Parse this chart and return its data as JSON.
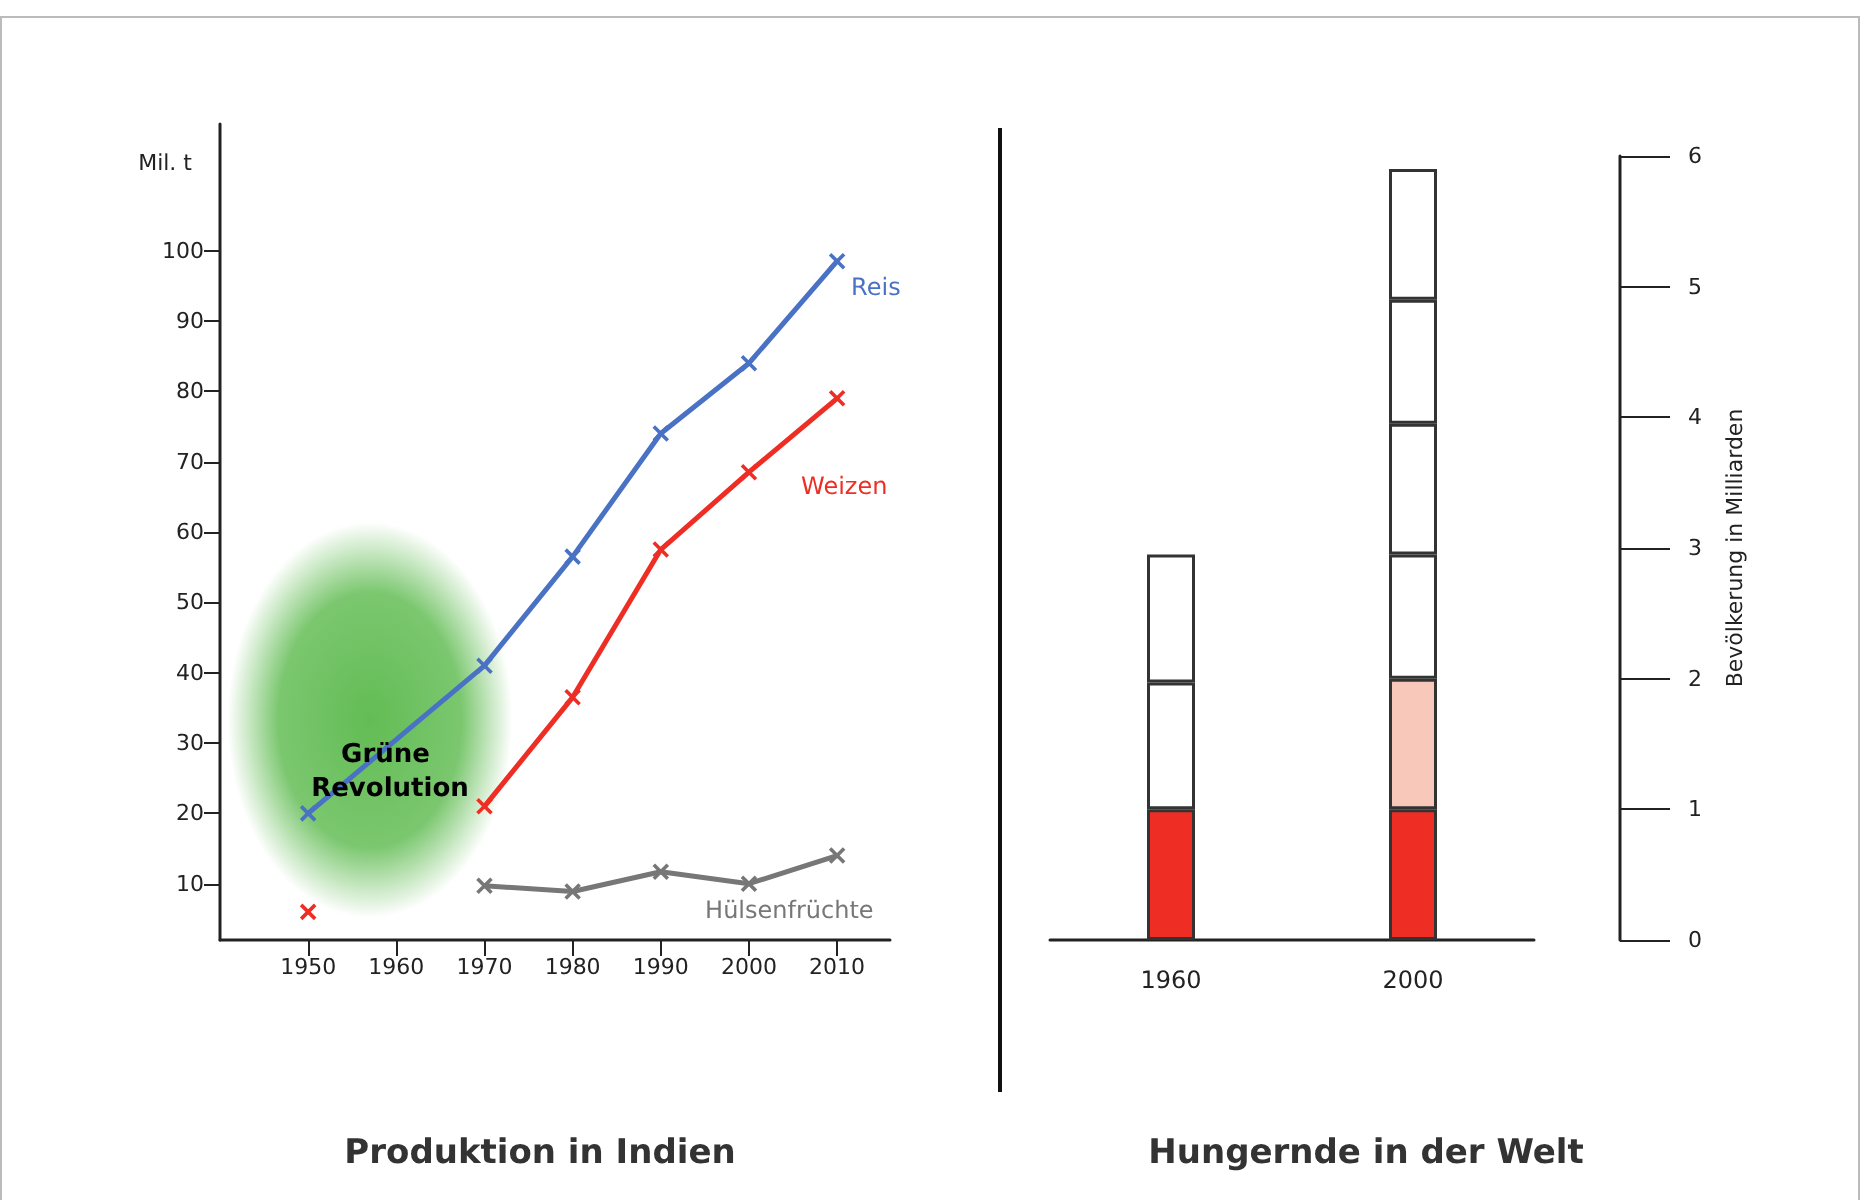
{
  "chart_data": [
    {
      "type": "line",
      "title": "Produktion in Indien",
      "ylabel": "Mil. t",
      "xlim": [
        1940,
        2016
      ],
      "xticks": [
        1950,
        1960,
        1970,
        1980,
        1990,
        2000,
        2010
      ],
      "ylim": [
        2,
        118
      ],
      "yticks": [
        10,
        20,
        30,
        40,
        50,
        60,
        70,
        80,
        90,
        100
      ],
      "grid": false,
      "legend": false,
      "marker": "cross",
      "line_style": "solid",
      "series": [
        {
          "name": "Reis",
          "color": "#4a72c4",
          "x": [
            1950,
            1970,
            1980,
            1990,
            2000,
            2010
          ],
          "values": [
            20,
            41,
            56.5,
            74,
            84,
            98.5
          ]
        },
        {
          "name": "Weizen",
          "color": "#ee2e24",
          "x": [
            1950,
            1960,
            1970,
            1980,
            1990,
            2000,
            2010
          ],
          "values": [
            6,
            null,
            21,
            36.5,
            57.5,
            68.5,
            79
          ]
        },
        {
          "name": "Hülsenfrüchte",
          "color": "#777777",
          "x": [
            1970,
            1980,
            1990,
            2000,
            2010
          ],
          "values": [
            9.7,
            8.9,
            11.7,
            10,
            14
          ]
        }
      ],
      "annotations": [
        "Grüne Revolution"
      ]
    },
    {
      "type": "bar",
      "title": "Hungernde in der Welt",
      "y2label": "Bevölkerung in Milliarden",
      "categories": [
        "1960",
        "2000"
      ],
      "stacked": true,
      "y2lim": [
        0,
        6
      ],
      "y2ticks": [
        0,
        1,
        2,
        3,
        4,
        5,
        6
      ],
      "grid": false,
      "legend": false,
      "series": [
        {
          "axis": "y2",
          "colors": [
            "#ee2e24",
            "#ee2e24"
          ],
          "values": [
            1,
            1
          ]
        },
        {
          "axis": "y2",
          "colors": [
            "#ffffff",
            "#f8c8bb"
          ],
          "values": [
            0.97,
            1
          ]
        },
        {
          "axis": "y2",
          "colors": [
            "#ffffff",
            "#ffffff"
          ],
          "values": [
            0.98,
            0.95
          ]
        },
        {
          "axis": "y2",
          "colors": [
            "#ffffff",
            "#ffffff"
          ],
          "values": [
            null,
            1
          ]
        },
        {
          "axis": "y2",
          "colors": [
            "#ffffff",
            "#ffffff"
          ],
          "values": [
            null,
            0.95
          ]
        },
        {
          "axis": "y2",
          "colors": [
            "#ffffff",
            "#ffffff"
          ],
          "values": [
            null,
            1
          ]
        }
      ]
    }
  ]
}
